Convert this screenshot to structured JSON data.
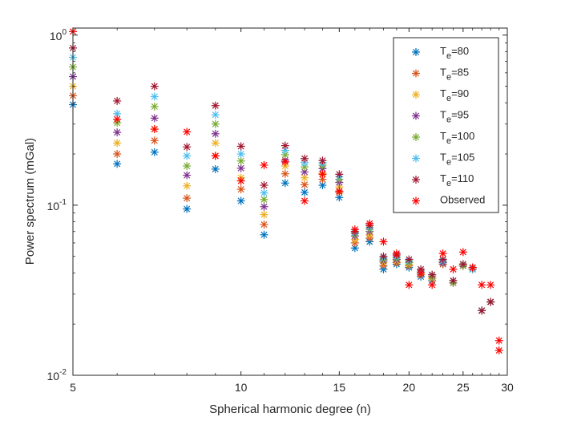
{
  "chart_data": {
    "type": "scatter",
    "xlabel": "Spherical harmonic degree (n)",
    "ylabel": "Power spectrum (mGal)",
    "xscale": "log",
    "yscale": "log",
    "xlim": [
      5,
      30
    ],
    "ylim": [
      0.01,
      1.1
    ],
    "xticks": [
      5,
      10,
      15,
      20,
      25,
      30
    ],
    "xtick_labels": [
      "5",
      "10",
      "15",
      "20",
      "25",
      "30"
    ],
    "yticks": [
      {
        "value": 1,
        "base": "10",
        "exp": "0"
      },
      {
        "value": 0.1,
        "base": "10",
        "exp": "-1"
      },
      {
        "value": 0.01,
        "base": "10",
        "exp": "-2"
      }
    ],
    "grid": false,
    "legend_position": "top-right",
    "marker": "asterisk",
    "series": [
      {
        "name": "Te=80",
        "label_main": "T",
        "label_sub": "e",
        "label_rest": "=80",
        "color": "#0072BD",
        "x": [
          5,
          6,
          7,
          8,
          9,
          10,
          11,
          12,
          13,
          14,
          15,
          16,
          17,
          18,
          19,
          20,
          21,
          22,
          23,
          24,
          25,
          26,
          27,
          28
        ],
        "y": [
          0.39,
          0.175,
          0.205,
          0.095,
          0.163,
          0.106,
          0.067,
          0.135,
          0.119,
          0.131,
          0.111,
          0.056,
          0.061,
          0.042,
          0.045,
          0.043,
          0.038,
          0.036,
          0.045,
          0.035,
          0.044,
          0.042,
          0.024,
          0.027
        ]
      },
      {
        "name": "Te=85",
        "label_main": "T",
        "label_sub": "e",
        "label_rest": "=85",
        "color": "#D95319",
        "x": [
          5,
          6,
          7,
          8,
          9,
          10,
          11,
          12,
          13,
          14,
          15,
          16,
          17,
          18,
          19,
          20,
          21,
          22,
          23,
          24,
          25,
          26,
          27,
          28
        ],
        "y": [
          0.44,
          0.2,
          0.24,
          0.11,
          0.195,
          0.124,
          0.077,
          0.153,
          0.132,
          0.142,
          0.119,
          0.06,
          0.064,
          0.044,
          0.046,
          0.044,
          0.039,
          0.037,
          0.045,
          0.035,
          0.044,
          0.042,
          0.024,
          0.027
        ]
      },
      {
        "name": "Te=90",
        "label_main": "T",
        "label_sub": "e",
        "label_rest": "=90",
        "color": "#EDB120",
        "x": [
          5,
          6,
          7,
          8,
          9,
          10,
          11,
          12,
          13,
          14,
          15,
          16,
          17,
          18,
          19,
          20,
          21,
          22,
          23,
          24,
          25,
          26,
          27,
          28
        ],
        "y": [
          0.5,
          0.232,
          0.28,
          0.13,
          0.232,
          0.145,
          0.088,
          0.17,
          0.145,
          0.154,
          0.128,
          0.063,
          0.067,
          0.046,
          0.047,
          0.045,
          0.04,
          0.037,
          0.046,
          0.035,
          0.044,
          0.042,
          0.024,
          0.027
        ]
      },
      {
        "name": "Te=95",
        "label_main": "T",
        "label_sub": "e",
        "label_rest": "=95",
        "color": "#7E2F8E",
        "x": [
          5,
          6,
          7,
          8,
          9,
          10,
          11,
          12,
          13,
          14,
          15,
          16,
          17,
          18,
          19,
          20,
          21,
          22,
          23,
          24,
          25,
          26,
          27,
          28
        ],
        "y": [
          0.57,
          0.268,
          0.325,
          0.15,
          0.263,
          0.165,
          0.098,
          0.184,
          0.157,
          0.164,
          0.136,
          0.066,
          0.07,
          0.047,
          0.048,
          0.046,
          0.04,
          0.038,
          0.046,
          0.035,
          0.044,
          0.042,
          0.024,
          0.027
        ]
      },
      {
        "name": "Te=100",
        "label_main": "T",
        "label_sub": "e",
        "label_rest": "=100",
        "color": "#77AC30",
        "x": [
          5,
          6,
          7,
          8,
          9,
          10,
          11,
          12,
          13,
          14,
          15,
          16,
          17,
          18,
          19,
          20,
          21,
          22,
          23,
          24,
          25,
          26,
          27,
          28
        ],
        "y": [
          0.65,
          0.305,
          0.38,
          0.17,
          0.3,
          0.182,
          0.108,
          0.198,
          0.168,
          0.172,
          0.142,
          0.068,
          0.072,
          0.048,
          0.049,
          0.046,
          0.041,
          0.038,
          0.047,
          0.035,
          0.044,
          0.042,
          0.024,
          0.027
        ]
      },
      {
        "name": "Te=105",
        "label_main": "T",
        "label_sub": "e",
        "label_rest": "=105",
        "color": "#4DBEEE",
        "x": [
          5,
          6,
          7,
          8,
          9,
          10,
          11,
          12,
          13,
          14,
          15,
          16,
          17,
          18,
          19,
          20,
          21,
          22,
          23,
          24,
          25,
          26,
          27,
          28
        ],
        "y": [
          0.74,
          0.345,
          0.435,
          0.195,
          0.34,
          0.2,
          0.118,
          0.21,
          0.178,
          0.178,
          0.147,
          0.069,
          0.074,
          0.049,
          0.05,
          0.047,
          0.041,
          0.039,
          0.047,
          0.036,
          0.045,
          0.042,
          0.024,
          0.027
        ]
      },
      {
        "name": "Te=110",
        "label_main": "T",
        "label_sub": "e",
        "label_rest": "=110",
        "color": "#A2142F",
        "x": [
          5,
          6,
          7,
          8,
          9,
          10,
          11,
          12,
          13,
          14,
          15,
          16,
          17,
          18,
          19,
          20,
          21,
          22,
          23,
          24,
          25,
          26,
          27,
          28
        ],
        "y": [
          0.84,
          0.41,
          0.5,
          0.22,
          0.385,
          0.222,
          0.131,
          0.224,
          0.188,
          0.183,
          0.152,
          0.07,
          0.076,
          0.05,
          0.051,
          0.048,
          0.042,
          0.039,
          0.048,
          0.036,
          0.045,
          0.043,
          0.024,
          0.027
        ]
      },
      {
        "name": "Observed",
        "label_main": "Observed",
        "label_sub": "",
        "label_rest": "",
        "color": "#FF0000",
        "x": [
          5,
          6,
          7,
          8,
          9,
          10,
          11,
          12,
          13,
          14,
          15,
          16,
          17,
          18,
          19,
          20,
          21,
          22,
          23,
          24,
          25,
          26,
          27,
          28,
          29,
          29
        ],
        "y": [
          1.05,
          0.32,
          0.28,
          0.27,
          0.195,
          0.139,
          0.172,
          0.18,
          0.106,
          0.152,
          0.121,
          0.072,
          0.078,
          0.061,
          0.052,
          0.034,
          0.04,
          0.034,
          0.052,
          0.042,
          0.053,
          0.043,
          0.034,
          0.034,
          0.016,
          0.014
        ]
      }
    ]
  }
}
